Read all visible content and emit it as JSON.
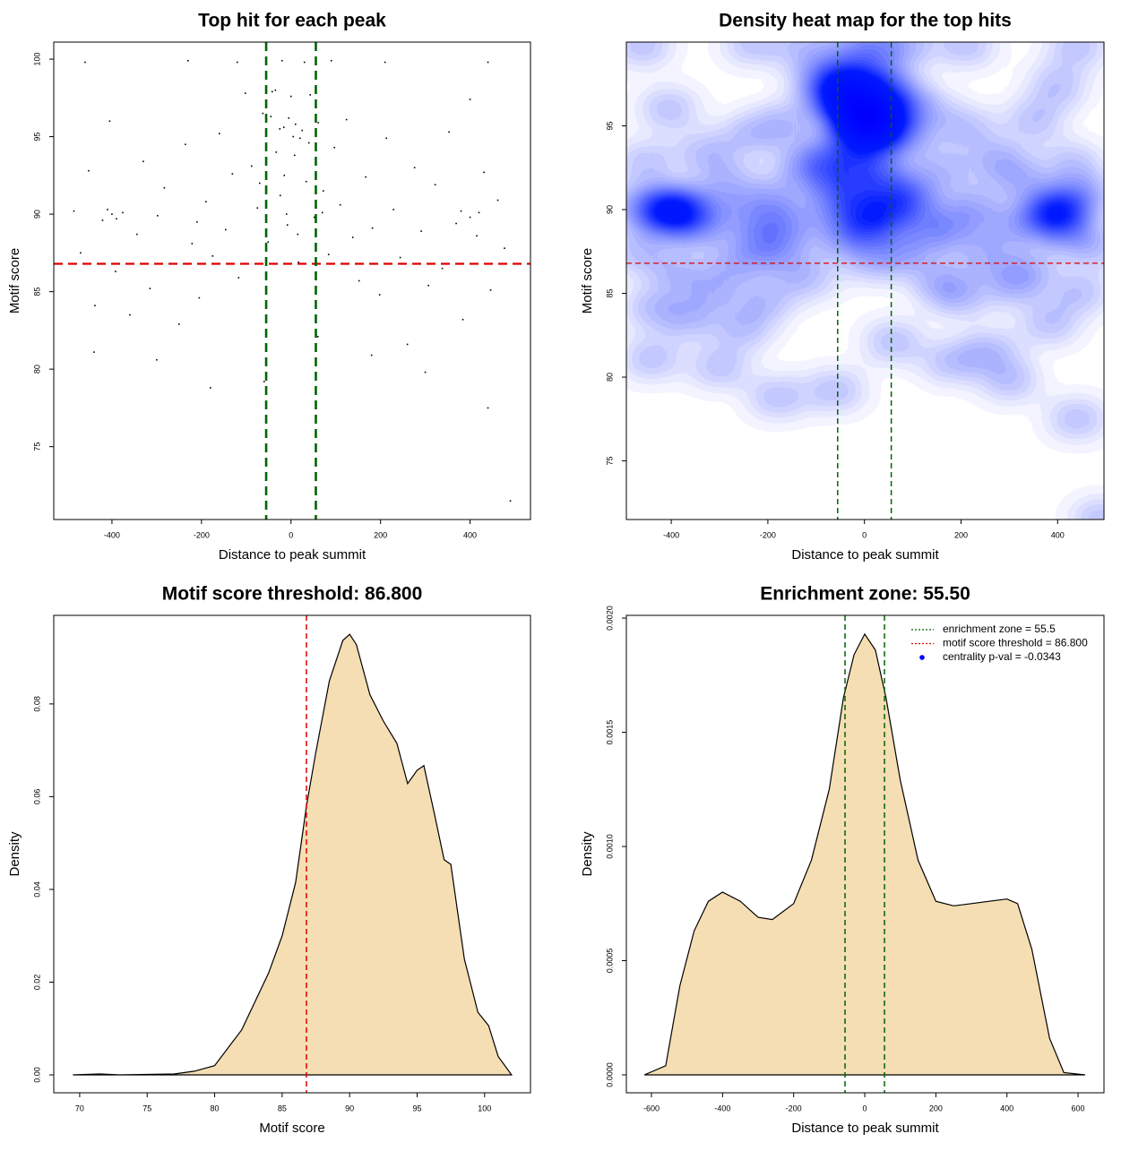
{
  "chart_data": [
    {
      "type": "scatter",
      "title": "Top hit for each peak",
      "x_label": "Distance to peak summit",
      "y_label": "Motif score",
      "xlim": [
        -530,
        535
      ],
      "ylim": [
        70.3,
        101.1
      ],
      "xticks": [
        -400,
        -200,
        0,
        200,
        400
      ],
      "yticks": [
        75,
        80,
        85,
        90,
        95,
        100
      ],
      "color": "#000000",
      "hlines": [
        86.8
      ],
      "hline_color": "#dd0000",
      "vlines": [
        -55.5,
        55.5
      ],
      "vline_color": "#006400",
      "x": [
        -485,
        -470,
        -452,
        -438,
        -421,
        -405,
        -392,
        -376,
        -360,
        -344,
        -330,
        -315,
        -298,
        -283,
        -267,
        -250,
        -236,
        -221,
        -205,
        -190,
        -175,
        -160,
        -146,
        -131,
        -117,
        -102,
        -88,
        -75,
        -63,
        -51,
        -42,
        -33,
        -24,
        -16,
        -8,
        0,
        8,
        17,
        25,
        34,
        43,
        52,
        61,
        72,
        84,
        97,
        110,
        124,
        138,
        152,
        167,
        182,
        198,
        213,
        229,
        244,
        260,
        276,
        291,
        307,
        322,
        338,
        353,
        369,
        384,
        400,
        415,
        431,
        446,
        462,
        477,
        490,
        -460,
        -230,
        -120,
        -20,
        30,
        90,
        210,
        440,
        -55,
        -45,
        -35,
        -15,
        5,
        15,
        40,
        55,
        -70,
        70,
        -440,
        -300,
        -180,
        -60,
        60,
        180,
        300,
        440,
        -10,
        -210,
        -400,
        -390,
        -410,
        380,
        400,
        420,
        -25,
        10,
        -5,
        20
      ],
      "y": [
        90.2,
        87.5,
        92.8,
        84.1,
        89.6,
        96.0,
        86.3,
        90.1,
        83.5,
        88.7,
        93.4,
        85.2,
        89.9,
        91.7,
        86.8,
        82.9,
        94.5,
        88.1,
        84.6,
        90.8,
        87.3,
        95.2,
        89.0,
        92.6,
        85.9,
        97.8,
        93.1,
        90.4,
        96.5,
        88.2,
        97.9,
        94.0,
        91.2,
        95.6,
        89.3,
        97.6,
        93.8,
        86.9,
        95.4,
        92.1,
        97.7,
        89.8,
        95.9,
        91.5,
        87.4,
        94.3,
        90.6,
        96.1,
        88.5,
        85.7,
        92.4,
        89.1,
        84.8,
        94.9,
        90.3,
        87.2,
        81.6,
        93.0,
        88.9,
        85.4,
        91.9,
        86.5,
        95.3,
        89.4,
        83.2,
        97.4,
        88.6,
        92.7,
        85.1,
        90.9,
        87.8,
        71.5,
        99.8,
        99.9,
        99.8,
        99.9,
        99.8,
        99.9,
        99.8,
        99.8,
        97.2,
        96.3,
        98.0,
        92.5,
        95.0,
        88.7,
        94.6,
        97.0,
        92.0,
        90.1,
        81.1,
        80.6,
        78.8,
        79.2,
        82.1,
        80.9,
        79.8,
        77.5,
        90.0,
        89.5,
        90.0,
        89.7,
        90.3,
        90.2,
        89.8,
        90.1,
        95.5,
        95.8,
        96.2,
        94.9
      ]
    },
    {
      "type": "heatmap",
      "title": "Density heat map for the top hits",
      "x_label": "Distance to peak summit",
      "y_label": "Motif score",
      "xlim": [
        -493,
        496
      ],
      "ylim": [
        71.5,
        100
      ],
      "xticks": [
        -400,
        -200,
        0,
        200,
        400
      ],
      "yticks": [
        75,
        80,
        85,
        90,
        95
      ],
      "hlines": [
        86.8
      ],
      "hline_color": "#dd0000",
      "vlines": [
        -55.5,
        55.5
      ],
      "vline_color": "#006400"
    },
    {
      "type": "density",
      "title": "Motif score threshold: 86.800",
      "x_label": "Motif score",
      "y_label": "Density",
      "xlim": [
        68.08,
        103.4
      ],
      "ylim": [
        -0.00386,
        0.0991
      ],
      "xticks": [
        70,
        75,
        80,
        85,
        90,
        95,
        100
      ],
      "yticks": [
        {
          "value": 0,
          "label": "0.00"
        },
        {
          "value": 0.02,
          "label": "0.02"
        },
        {
          "value": 0.04,
          "label": "0.04"
        },
        {
          "value": 0.06,
          "label": "0.06"
        },
        {
          "value": 0.08,
          "label": "0.08"
        }
      ],
      "color": "#f5deb3",
      "vlines": [
        86.8
      ],
      "vline_color": "#dd0000",
      "x": [
        69.5,
        71.5,
        73,
        77,
        78.5,
        80,
        82,
        84,
        85,
        86,
        86.8,
        87.5,
        88.5,
        89.5,
        90,
        90.5,
        91.5,
        92.5,
        93.5,
        94.3,
        95,
        95.5,
        96.3,
        97,
        97.5,
        98.5,
        99.5,
        100.3,
        101,
        102
      ],
      "values": [
        0,
        0.0002,
        0,
        0.0002,
        0.0008,
        0.002,
        0.0097,
        0.022,
        0.03,
        0.0415,
        0.058,
        0.0696,
        0.085,
        0.0937,
        0.095,
        0.0928,
        0.082,
        0.0763,
        0.0715,
        0.0628,
        0.0657,
        0.0667,
        0.056,
        0.0464,
        0.0454,
        0.025,
        0.0135,
        0.0106,
        0.004,
        0
      ]
    },
    {
      "type": "density",
      "title": "Enrichment zone: 55.50",
      "x_label": "Distance to peak summit",
      "y_label": "Density",
      "xlim": [
        -670.6,
        673
      ],
      "ylim": [
        -7.84e-05,
        0.002012
      ],
      "xticks": [
        -600,
        -400,
        -200,
        0,
        200,
        400,
        600
      ],
      "yticks": [
        {
          "value": 0,
          "label": "0.0000"
        },
        {
          "value": 0.0005,
          "label": "0.0005"
        },
        {
          "value": 0.001,
          "label": "0.0010"
        },
        {
          "value": 0.0015,
          "label": "0.0015"
        },
        {
          "value": 0.002,
          "label": "0.0020"
        }
      ],
      "color": "#f5deb3",
      "vlines": [
        -55.5,
        55.5
      ],
      "vline_color": "#006400",
      "x": [
        -620,
        -560,
        -520,
        -480,
        -440,
        -400,
        -350,
        -300,
        -260,
        -200,
        -150,
        -100,
        -60,
        -30,
        0,
        30,
        60,
        100,
        150,
        200,
        250,
        300,
        350,
        400,
        430,
        470,
        520,
        560,
        620
      ],
      "values": [
        0,
        4e-05,
        0.00039,
        0.00063,
        0.00076,
        0.0008,
        0.00076,
        0.00069,
        0.00068,
        0.00075,
        0.00094,
        0.00125,
        0.00165,
        0.00184,
        0.00193,
        0.00186,
        0.00165,
        0.00129,
        0.00094,
        0.00076,
        0.00074,
        0.00075,
        0.00076,
        0.00077,
        0.00075,
        0.00055,
        0.00016,
        1e-05,
        0
      ],
      "legend_position": "topright",
      "legend": [
        {
          "name": "enrichment zone = 55.5",
          "color": "#006400",
          "style": "dotted"
        },
        {
          "name": "motif score threshold = 86.800",
          "color": "#dd0000",
          "style": "dotted"
        },
        {
          "name": "centrality p-val = -0.0343",
          "color": "#0000ff",
          "style": "point"
        }
      ]
    }
  ]
}
